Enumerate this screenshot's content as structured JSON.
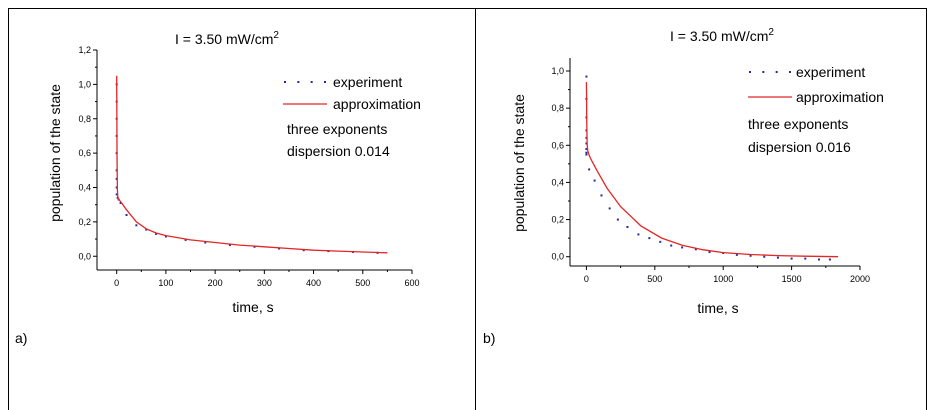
{
  "panels": [
    {
      "letter": "a)"
    },
    {
      "letter": "b)"
    }
  ],
  "chart_data": [
    {
      "type": "line",
      "title": "I = 3.50 mW/cm",
      "title_superscript": "2",
      "xlabel": "time, s",
      "ylabel": "population of the state",
      "xlim": [
        -40,
        600
      ],
      "ylim": [
        -0.08,
        1.2
      ],
      "xticks": [
        0,
        100,
        200,
        300,
        400,
        500,
        600
      ],
      "yticks": [
        0.0,
        0.2,
        0.4,
        0.6,
        0.8,
        1.0,
        1.2
      ],
      "yticks_labels": [
        "0,0",
        "0,2",
        "0,4",
        "0,6",
        "0,8",
        "1,0",
        "1,2"
      ],
      "legend_position": "upper-right",
      "annotations": [
        "three exponents",
        "dispersion 0.014"
      ],
      "series": [
        {
          "name": "experiment",
          "style": "dotted",
          "color": "#2a2a9e",
          "x": [
            0,
            0,
            0,
            0,
            0,
            0,
            0,
            0,
            0,
            2,
            4,
            8,
            20,
            40,
            60,
            80,
            100,
            140,
            180,
            230,
            280,
            330,
            380,
            430,
            480,
            530
          ],
          "y": [
            1.0,
            0.9,
            0.8,
            0.7,
            0.6,
            0.5,
            0.45,
            0.4,
            0.36,
            0.34,
            0.33,
            0.31,
            0.24,
            0.18,
            0.155,
            0.13,
            0.115,
            0.095,
            0.08,
            0.065,
            0.055,
            0.045,
            0.035,
            0.03,
            0.025,
            0.02
          ]
        },
        {
          "name": "approximation",
          "style": "solid",
          "color": "#e32626",
          "x": [
            0,
            0.1,
            0.2,
            0.4,
            0.7,
            1,
            1.5,
            2,
            3,
            4,
            6,
            10,
            20,
            40,
            60,
            80,
            100,
            150,
            200,
            250,
            300,
            350,
            400,
            450,
            500,
            550
          ],
          "y": [
            1.05,
            0.98,
            0.9,
            0.76,
            0.6,
            0.49,
            0.39,
            0.35,
            0.335,
            0.33,
            0.325,
            0.31,
            0.27,
            0.2,
            0.16,
            0.135,
            0.12,
            0.095,
            0.08,
            0.065,
            0.055,
            0.045,
            0.035,
            0.03,
            0.025,
            0.02
          ]
        }
      ]
    },
    {
      "type": "line",
      "title": "I = 3.50 mW/cm",
      "title_superscript": "2",
      "xlabel": "time, s",
      "ylabel": "population of the state",
      "xlim": [
        -120,
        2000
      ],
      "ylim": [
        -0.05,
        1.07
      ],
      "xticks": [
        0,
        500,
        1000,
        1500,
        2000
      ],
      "yticks": [
        0.0,
        0.2,
        0.4,
        0.6,
        0.8,
        1.0
      ],
      "yticks_labels": [
        "0,0",
        "0,2",
        "0,4",
        "0,6",
        "0,8",
        "1,0"
      ],
      "legend_position": "upper-right",
      "annotations": [
        "three exponents",
        "dispersion 0.016"
      ],
      "series": [
        {
          "name": "experiment",
          "style": "dotted",
          "color": "#2a2a9e",
          "x": [
            0,
            0,
            0,
            0,
            0,
            0,
            0,
            0,
            0,
            20,
            60,
            110,
            170,
            230,
            300,
            380,
            460,
            540,
            620,
            700,
            800,
            900,
            1000,
            1100,
            1200,
            1300,
            1400,
            1500,
            1600,
            1700,
            1780
          ],
          "y": [
            0.97,
            0.85,
            0.75,
            0.68,
            0.64,
            0.61,
            0.58,
            0.56,
            0.55,
            0.47,
            0.41,
            0.33,
            0.26,
            0.2,
            0.16,
            0.12,
            0.1,
            0.08,
            0.06,
            0.05,
            0.04,
            0.025,
            0.02,
            0.01,
            0.005,
            0.0,
            -0.005,
            -0.01,
            -0.01,
            -0.015,
            -0.015
          ]
        },
        {
          "name": "approximation",
          "style": "solid",
          "color": "#e32626",
          "x": [
            0,
            1,
            2,
            4,
            6,
            10,
            20,
            40,
            80,
            150,
            250,
            400,
            550,
            700,
            850,
            1000,
            1200,
            1400,
            1600,
            1840
          ],
          "y": [
            0.94,
            0.85,
            0.75,
            0.65,
            0.6,
            0.57,
            0.545,
            0.515,
            0.46,
            0.37,
            0.27,
            0.165,
            0.1,
            0.062,
            0.038,
            0.022,
            0.012,
            0.006,
            0.003,
            0.0
          ]
        }
      ]
    }
  ]
}
